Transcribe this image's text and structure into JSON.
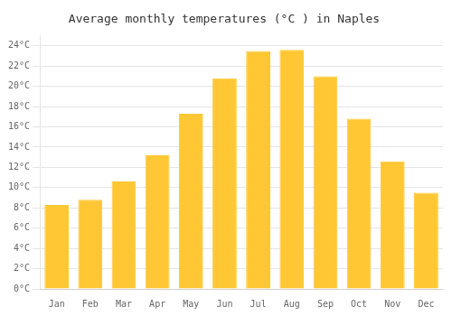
{
  "chart_data": {
    "type": "bar",
    "title": "Average monthly temperatures (°C ) in Naples",
    "categories": [
      "Jan",
      "Feb",
      "Mar",
      "Apr",
      "May",
      "Jun",
      "Jul",
      "Aug",
      "Sep",
      "Oct",
      "Nov",
      "Dec"
    ],
    "values": [
      8.3,
      8.8,
      10.6,
      13.2,
      17.3,
      20.8,
      23.5,
      23.6,
      21.0,
      16.8,
      12.6,
      9.5
    ],
    "color": "#FFC733",
    "ylim": [
      0,
      25
    ],
    "yticks": [
      {
        "value": 0,
        "label": "0°C"
      },
      {
        "value": 2,
        "label": "2°C"
      },
      {
        "value": 4,
        "label": "4°C"
      },
      {
        "value": 6,
        "label": "6°C"
      },
      {
        "value": 8,
        "label": "8°C"
      },
      {
        "value": 10,
        "label": "10°C"
      },
      {
        "value": 12,
        "label": "12°C"
      },
      {
        "value": 14,
        "label": "14°C"
      },
      {
        "value": 16,
        "label": "16°C"
      },
      {
        "value": 18,
        "label": "18°C"
      },
      {
        "value": 20,
        "label": "20°C"
      },
      {
        "value": 22,
        "label": "22°C"
      },
      {
        "value": 24,
        "label": "24°C"
      }
    ],
    "grid": true
  }
}
